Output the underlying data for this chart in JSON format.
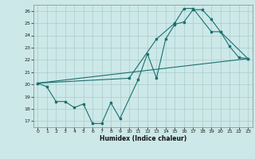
{
  "title": "",
  "xlabel": "Humidex (Indice chaleur)",
  "ylabel": "",
  "bg_color": "#cde8e8",
  "grid_color": "#aacccc",
  "line_color": "#1a7070",
  "xlim": [
    -0.5,
    23.5
  ],
  "ylim": [
    16.5,
    26.5
  ],
  "xticks": [
    0,
    1,
    2,
    3,
    4,
    5,
    6,
    7,
    8,
    9,
    10,
    11,
    12,
    13,
    14,
    15,
    16,
    17,
    18,
    19,
    20,
    21,
    22,
    23
  ],
  "yticks": [
    17,
    18,
    19,
    20,
    21,
    22,
    23,
    24,
    25,
    26
  ],
  "line1_x": [
    0,
    1,
    2,
    3,
    4,
    5,
    6,
    7,
    8,
    9,
    11,
    12,
    13,
    14,
    15,
    16,
    17,
    18,
    19,
    20,
    21,
    22,
    23
  ],
  "line1_y": [
    20.1,
    19.8,
    18.6,
    18.6,
    18.1,
    18.4,
    16.8,
    16.8,
    18.5,
    17.2,
    20.4,
    22.5,
    20.5,
    23.7,
    24.9,
    25.1,
    26.1,
    26.1,
    25.3,
    24.3,
    23.1,
    22.2,
    22.1
  ],
  "line2_x": [
    0,
    10,
    13,
    15,
    16,
    17,
    19,
    20,
    23
  ],
  "line2_y": [
    20.1,
    20.5,
    23.7,
    25.0,
    26.2,
    26.2,
    24.3,
    24.3,
    22.1
  ],
  "line3_x": [
    0,
    23
  ],
  "line3_y": [
    20.1,
    22.1
  ]
}
